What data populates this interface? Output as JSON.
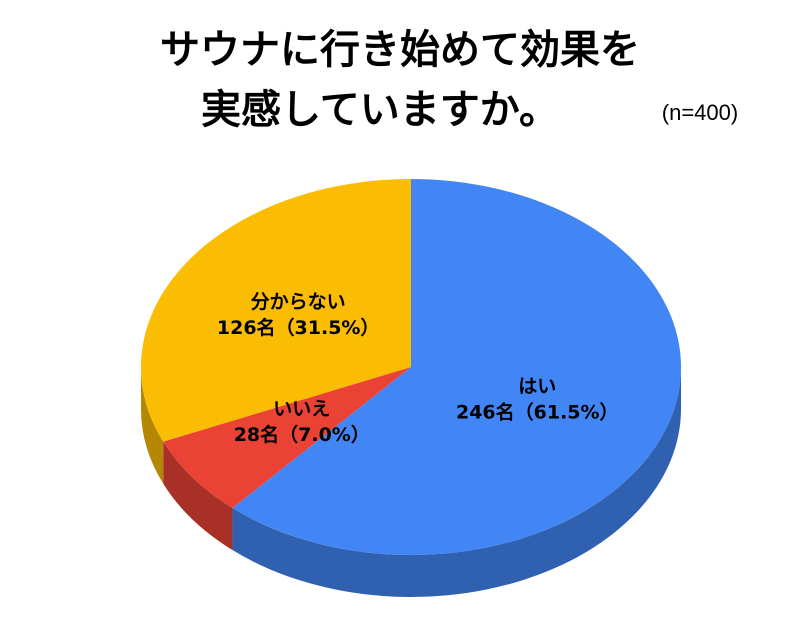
{
  "chart_data": {
    "type": "pie3d",
    "title": [
      "サウナに行き始めて効果を",
      "実感していますか。"
    ],
    "subtitle": "(n=400)",
    "categories": [
      "はい",
      "いいえ",
      "分からない"
    ],
    "values": [
      246,
      28,
      126
    ],
    "value_labels": [
      "246名（61.5%）",
      "28名（7.0%）",
      "126名（31.5%）"
    ],
    "colors": [
      "#4285f4",
      "#ea4335",
      "#fbbc04"
    ]
  }
}
